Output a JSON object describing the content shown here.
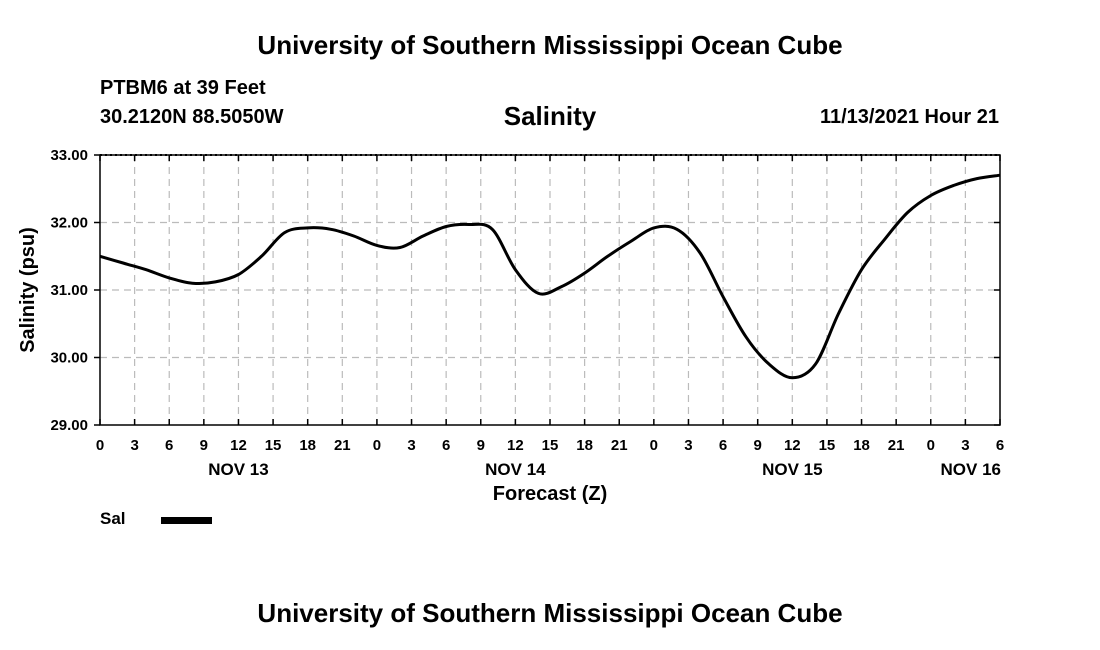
{
  "header": {
    "title": "University of Southern Mississippi Ocean Cube",
    "station": "PTBM6 at 39 Feet",
    "coords": "30.2120N  88.5050W",
    "chart_title": "Salinity",
    "datetime": "11/13/2021 Hour 21"
  },
  "footer": {
    "title": "University of Southern Mississippi Ocean Cube"
  },
  "legend": {
    "label": "Sal"
  },
  "colors": {
    "line": "#000000",
    "grid": "#bbbbbb",
    "axis": "#000000"
  },
  "chart_data": {
    "type": "line",
    "title": "Salinity",
    "xlabel": "Forecast (Z)",
    "ylabel": "Salinity (psu)",
    "xlim": [
      0,
      78
    ],
    "ylim": [
      29.0,
      33.0
    ],
    "y_ticks": [
      "29.00",
      "30.00",
      "31.00",
      "32.00",
      "33.00"
    ],
    "x_tick_labels": [
      "0",
      "3",
      "6",
      "9",
      "12",
      "15",
      "18",
      "21",
      "0",
      "3",
      "6",
      "9",
      "12",
      "15",
      "18",
      "21",
      "0",
      "3",
      "6",
      "9",
      "12",
      "15",
      "18",
      "21",
      "0",
      "3",
      "6"
    ],
    "day_labels": [
      {
        "label": "NOV 13",
        "hour": 12
      },
      {
        "label": "NOV 14",
        "hour": 36
      },
      {
        "label": "NOV 15",
        "hour": 60
      },
      {
        "label": "NOV 16",
        "hour": 78
      }
    ],
    "grid": true,
    "series": [
      {
        "name": "Sal",
        "x": [
          0,
          2,
          4,
          6,
          8,
          10,
          12,
          14,
          16,
          18,
          20,
          22,
          24,
          26,
          28,
          30,
          32,
          34,
          36,
          38,
          40,
          42,
          44,
          46,
          48,
          50,
          52,
          54,
          56,
          58,
          60,
          62,
          64,
          66,
          68,
          70,
          72,
          74,
          76,
          78
        ],
        "values": [
          31.5,
          31.4,
          31.3,
          31.18,
          31.1,
          31.12,
          31.23,
          31.5,
          31.85,
          31.92,
          31.9,
          31.8,
          31.66,
          31.63,
          31.8,
          31.94,
          31.97,
          31.9,
          31.3,
          30.95,
          31.05,
          31.25,
          31.5,
          31.72,
          31.92,
          31.9,
          31.55,
          30.9,
          30.3,
          29.9,
          29.7,
          29.9,
          30.65,
          31.3,
          31.75,
          32.15,
          32.4,
          32.55,
          32.65,
          32.7
        ]
      }
    ]
  }
}
